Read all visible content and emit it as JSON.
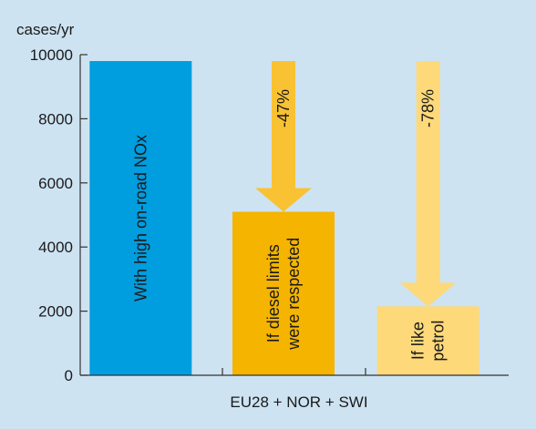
{
  "chart_data": {
    "type": "bar",
    "background": "#cde3f2",
    "ylabel": "cases/yr",
    "xlabel": "EU28 + NOR + SWI",
    "ylim": [
      0,
      10000
    ],
    "yticks": [
      0,
      2000,
      4000,
      6000,
      8000,
      10000
    ],
    "ytick_labels": [
      "0",
      "2000",
      "4000",
      "6000",
      "8000",
      "10000"
    ],
    "grid": false,
    "bars": [
      {
        "label_lines": [
          "With high on-road NOx"
        ],
        "value": 9800,
        "color": "#009ddf"
      },
      {
        "label_lines": [
          "If diesel limits",
          "were respected"
        ],
        "value": 5100,
        "color": "#f5b400"
      },
      {
        "label_lines": [
          "If like",
          "petrol"
        ],
        "value": 2150,
        "color": "#fdd97a"
      }
    ],
    "arrows": [
      {
        "label": "-47%",
        "from": 9800,
        "to": 5100,
        "color": "#f9c232",
        "bar_index": 1
      },
      {
        "label": "-78%",
        "from": 9800,
        "to": 2150,
        "color": "#fdd97a",
        "bar_index": 2
      }
    ]
  }
}
